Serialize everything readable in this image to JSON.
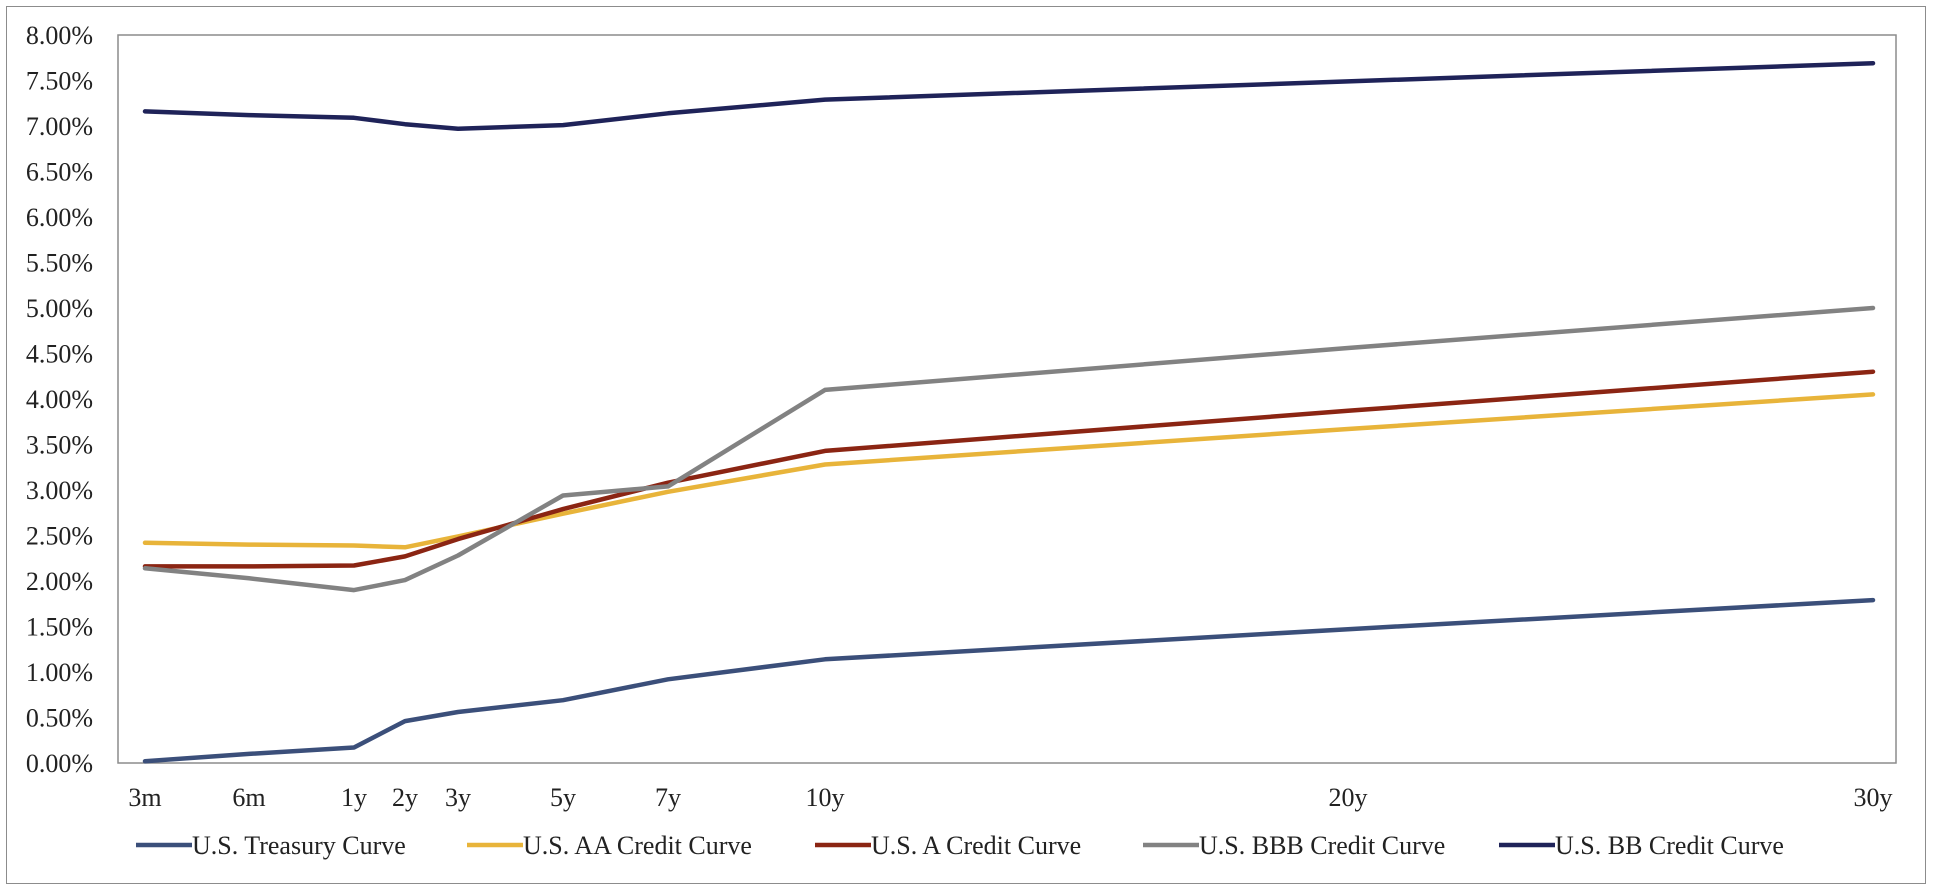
{
  "chart_data": {
    "type": "line",
    "title": "",
    "xlabel": "",
    "ylabel": "",
    "x": [
      "3m",
      "6m",
      "1y",
      "2y",
      "3y",
      "5y",
      "7y",
      "10y",
      "20y",
      "30y"
    ],
    "x_years": [
      0.25,
      0.5,
      1,
      2,
      3,
      5,
      7,
      10,
      20,
      30
    ],
    "ylim": [
      0,
      8
    ],
    "y_ticks": [
      "0.00%",
      "0.50%",
      "1.00%",
      "1.50%",
      "2.00%",
      "2.50%",
      "3.00%",
      "3.50%",
      "4.00%",
      "4.50%",
      "5.00%",
      "5.50%",
      "6.00%",
      "6.50%",
      "7.00%",
      "7.50%",
      "8.00%"
    ],
    "grid": false,
    "legend_position": "bottom",
    "series": [
      {
        "name": "U.S. Treasury Curve",
        "color": "#3b4f7a",
        "values": [
          0.02,
          0.1,
          0.17,
          0.46,
          0.56,
          0.69,
          0.92,
          1.14,
          1.47,
          1.79
        ]
      },
      {
        "name": "U.S. AA Credit Curve",
        "color": "#e8b43a",
        "values": [
          2.42,
          2.4,
          2.39,
          2.37,
          2.49,
          2.74,
          2.98,
          3.28,
          3.67,
          4.05
        ]
      },
      {
        "name": "U.S. A Credit Curve",
        "color": "#8b2513",
        "values": [
          2.16,
          2.16,
          2.17,
          2.27,
          2.46,
          2.79,
          3.08,
          3.43,
          3.87,
          4.3
        ]
      },
      {
        "name": "U.S. BBB Credit Curve",
        "color": "#828282",
        "values": [
          2.14,
          2.03,
          1.9,
          2.01,
          2.28,
          2.94,
          3.04,
          4.1,
          4.56,
          5.0
        ]
      },
      {
        "name": "U.S. BB Credit Curve",
        "color": "#1f2359",
        "values": [
          7.16,
          7.12,
          7.09,
          7.02,
          6.97,
          7.01,
          7.14,
          7.29,
          7.49,
          7.69
        ]
      }
    ]
  }
}
